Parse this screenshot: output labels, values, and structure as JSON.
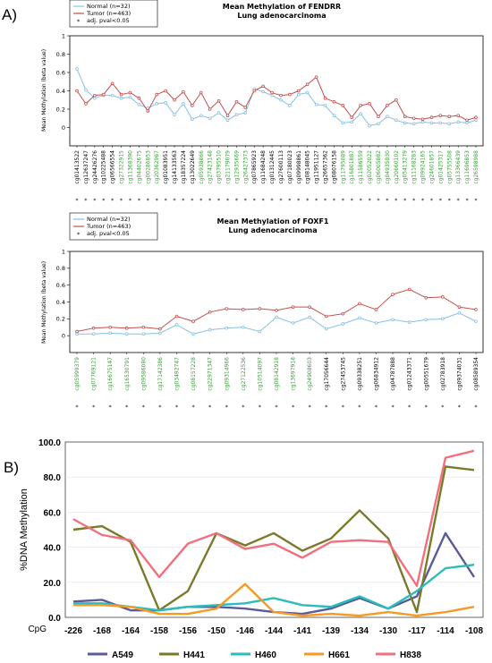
{
  "panels": {
    "a_label": "A)",
    "b_label": "B)"
  },
  "chart_data": [
    {
      "type": "line",
      "title": "Mean Methylation of FENDRR",
      "subtitle": "Lung adenocarcinoma",
      "ylabel": "Mean Methylation (beta value)",
      "ylim": [
        -0.2,
        1
      ],
      "yticks": [
        0,
        0.2,
        0.4,
        0.6,
        0.8,
        1
      ],
      "legend": [
        "Normal (n=32)",
        "Tumor (n=463)",
        "adj. pval<0.05"
      ],
      "colors": {
        "Normal": "#86c0e6",
        "Tumor": "#c0504d",
        "sig": "#3a9a3a",
        "nonsig": "#000000"
      },
      "categories": [
        "cg01413522",
        "cg12637247",
        "cg24426276",
        "cg10225488",
        "cg06566554",
        "cg27322915",
        "cg11368390",
        "cg04402675",
        "cg00286853",
        "cg20362967",
        "cg01083951",
        "cg14133563",
        "cg18357224",
        "cg13022649",
        "cg05938866",
        "cg27423148",
        "cg03795510",
        "cg21179079",
        "cg12935669",
        "cg26427373",
        "cg07865923",
        "cg11684248",
        "cg01312445",
        "cg27600113",
        "cg07180023",
        "cg09998861",
        "cg08148045",
        "cg11951127",
        "cg26657362",
        "cg08076158",
        "cg11795089",
        "cg16801887",
        "cg11586559",
        "cg02052022",
        "cg06005882",
        "cg04935830",
        "cg20660102",
        "cg05413279",
        "cg11168283",
        "cg09924165",
        "cg24601857",
        "cg01425317",
        "cg05755508",
        "cg13366439",
        "cg11696853",
        "cg26598988"
      ],
      "significant": [
        false,
        false,
        false,
        false,
        false,
        true,
        true,
        true,
        true,
        true,
        false,
        false,
        false,
        false,
        true,
        true,
        true,
        true,
        true,
        true,
        false,
        false,
        false,
        false,
        false,
        false,
        false,
        false,
        false,
        false,
        true,
        true,
        true,
        true,
        true,
        true,
        true,
        true,
        true,
        true,
        true,
        true,
        true,
        true,
        true,
        true
      ],
      "series": [
        {
          "name": "Normal (n=32)",
          "values": [
            0.64,
            0.41,
            0.32,
            0.35,
            0.35,
            0.32,
            0.33,
            0.25,
            0.21,
            0.26,
            0.27,
            0.14,
            0.26,
            0.09,
            0.13,
            0.1,
            0.16,
            0.08,
            0.14,
            0.16,
            0.42,
            0.39,
            0.35,
            0.3,
            0.24,
            0.36,
            0.38,
            0.25,
            0.24,
            0.13,
            0.05,
            0.06,
            0.15,
            0.02,
            0.04,
            0.12,
            0.08,
            0.05,
            0.04,
            0.06,
            0.05,
            0.05,
            0.04,
            0.06,
            0.05,
            0.08
          ]
        },
        {
          "name": "Tumor (n=463)",
          "values": [
            0.4,
            0.26,
            0.35,
            0.36,
            0.48,
            0.36,
            0.38,
            0.32,
            0.18,
            0.36,
            0.4,
            0.3,
            0.39,
            0.24,
            0.38,
            0.2,
            0.29,
            0.13,
            0.28,
            0.22,
            0.4,
            0.45,
            0.38,
            0.35,
            0.36,
            0.4,
            0.47,
            0.55,
            0.32,
            0.28,
            0.24,
            0.11,
            0.24,
            0.26,
            0.12,
            0.24,
            0.3,
            0.12,
            0.1,
            0.09,
            0.11,
            0.13,
            0.12,
            0.13,
            0.08,
            0.11
          ]
        }
      ]
    },
    {
      "type": "line",
      "title": "Mean Methylation of FOXF1",
      "subtitle": "Lung adenocarcinoma",
      "ylabel": "Mean Methylation (beta value)",
      "ylim": [
        -0.2,
        1
      ],
      "yticks": [
        0,
        0.2,
        0.4,
        0.6,
        0.8,
        1
      ],
      "legend": [
        "Normal (n=32)",
        "Tumor (n=463)",
        "adj. pval<0.05"
      ],
      "colors": {
        "Normal": "#86c0e6",
        "Tumor": "#c0504d",
        "sig": "#3a9a3a",
        "nonsig": "#000000"
      },
      "categories": [
        "cg05999379",
        "cg07769121",
        "cg16675147",
        "cg16530791",
        "cg09586080",
        "cg17142386",
        "cg03492747",
        "cg08157228",
        "cg22971347",
        "cg09314966",
        "cg27122536",
        "cg10514097",
        "cg08142918",
        "cg13697918",
        "cg24908603",
        "cg17056644",
        "cg27453745",
        "cg09338251",
        "cg06834912",
        "cg04787888",
        "cg01243371",
        "cg00551679",
        "cg02783918",
        "cg09374031",
        "cg08589354"
      ],
      "significant": [
        true,
        true,
        true,
        true,
        true,
        true,
        true,
        true,
        true,
        true,
        true,
        true,
        true,
        true,
        true,
        false,
        false,
        false,
        false,
        false,
        false,
        false,
        false,
        false,
        false
      ],
      "series": [
        {
          "name": "Normal (n=32)",
          "values": [
            0.02,
            0.02,
            0.03,
            0.02,
            0.02,
            0.03,
            0.13,
            0.02,
            0.07,
            0.09,
            0.1,
            0.05,
            0.22,
            0.15,
            0.22,
            0.08,
            0.14,
            0.21,
            0.15,
            0.19,
            0.16,
            0.19,
            0.2,
            0.27,
            0.17
          ]
        },
        {
          "name": "Tumor (n=463)",
          "values": [
            0.05,
            0.09,
            0.1,
            0.09,
            0.1,
            0.08,
            0.23,
            0.17,
            0.28,
            0.32,
            0.31,
            0.32,
            0.3,
            0.34,
            0.34,
            0.23,
            0.26,
            0.38,
            0.31,
            0.49,
            0.55,
            0.45,
            0.46,
            0.34,
            0.31
          ]
        }
      ]
    },
    {
      "type": "line",
      "title": "",
      "ylabel": "%DNA Methylation",
      "xlabel": "CpG",
      "ylim": [
        0,
        100
      ],
      "yticks": [
        "0.0",
        "20.0",
        "40.0",
        "60.0",
        "80.0",
        "100.0"
      ],
      "categories": [
        "-226",
        "-168",
        "-164",
        "-158",
        "-156",
        "-150",
        "-146",
        "-144",
        "-141",
        "-139",
        "-134",
        "-130",
        "-117",
        "-114",
        "-108"
      ],
      "series": [
        {
          "name": "A549",
          "color": "#5b5b9a",
          "values": [
            9,
            10,
            4,
            4,
            6,
            6,
            5,
            3,
            2,
            5,
            11,
            5,
            12,
            48,
            23
          ]
        },
        {
          "name": "H441",
          "color": "#7a7a2a",
          "values": [
            50,
            52,
            43,
            4,
            15,
            48,
            41,
            48,
            38,
            45,
            61,
            45,
            3,
            86,
            84
          ]
        },
        {
          "name": "H460",
          "color": "#2bbcbc",
          "values": [
            8,
            8,
            6,
            4,
            6,
            7,
            8,
            11,
            7,
            6,
            12,
            5,
            15,
            28,
            30
          ]
        },
        {
          "name": "H661",
          "color": "#f59a23",
          "values": [
            7,
            7,
            6,
            2,
            2,
            5,
            19,
            3,
            1,
            2,
            1,
            3,
            1,
            3,
            6
          ]
        },
        {
          "name": "H838",
          "color": "#f07080",
          "values": [
            56,
            47,
            44,
            23,
            42,
            48,
            39,
            42,
            34,
            43,
            44,
            43,
            18,
            91,
            95
          ]
        }
      ]
    }
  ]
}
